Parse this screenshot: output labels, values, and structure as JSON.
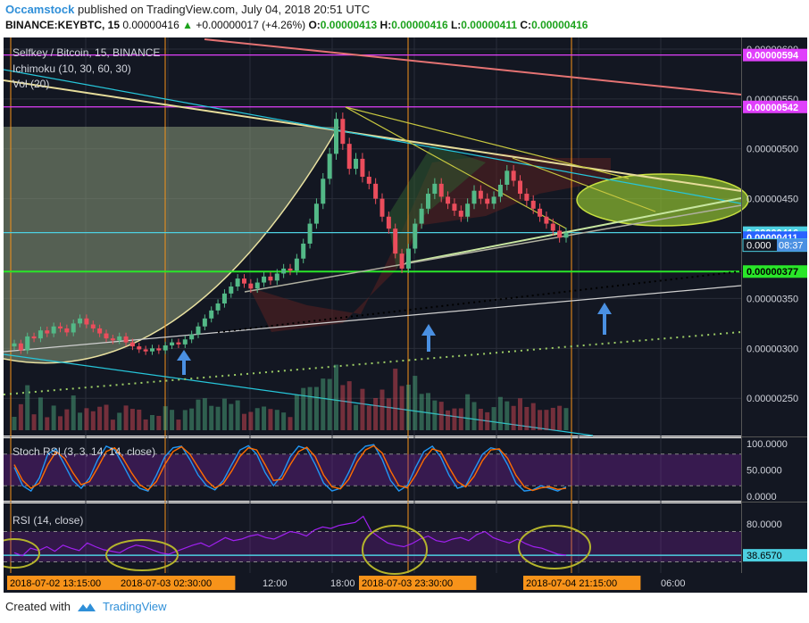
{
  "header": {
    "author": "Occamstock",
    "published_text": "published on TradingView.com, July 04, 2018 20:51 UTC",
    "symbol": "BINANCE:KEYBTC, 15",
    "price": "0.00000416",
    "change": "+0.00000017 (+4.26%)",
    "o_label": "O:",
    "o": "0.00000413",
    "h_label": "H:",
    "h": "0.00000416",
    "l_label": "L:",
    "l": "0.00000411",
    "c_label": "C:",
    "c": "0.00000416"
  },
  "legend": {
    "main": "Selfkey / Bitcoin, 15, BINANCE",
    "ichimoku": "Ichimoku (10, 30, 60, 30)",
    "vol": "Vol (20)",
    "stoch": "Stoch RSI (3, 3, 14, 14, close)",
    "rsi": "RSI (14, close)"
  },
  "footer": {
    "created": "Created with",
    "brand": "TradingView"
  },
  "colors": {
    "bg": "#131722",
    "up": "#53b987",
    "down": "#eb4d5c",
    "magenta": "#e040fb",
    "green_level": "#29e629",
    "cyan_level": "#4dd0e1",
    "orange": "#f7931a",
    "olive": "#c8c840",
    "stoch_k": "#2196f3",
    "stoch_d": "#ff6d00",
    "rsi": "#a020f0"
  },
  "chart_data": [
    {
      "type": "candlestick",
      "title": "Selfkey / Bitcoin, 15, BINANCE",
      "y_ticks": [
        "0.00000600",
        "0.00000550",
        "0.00000500",
        "0.00000450",
        "0.00000350",
        "0.00000300",
        "0.00000250"
      ],
      "ylim": [
        2.18e-06,
        6.08e-06
      ],
      "levels": [
        {
          "label": "0.00000594",
          "value": 5.94e-06,
          "color": "#e040fb"
        },
        {
          "label": "0.00000542",
          "value": 5.42e-06,
          "color": "#e040fb"
        },
        {
          "label": "0.00000416",
          "value": 4.16e-06,
          "color": "#4dd0e1"
        },
        {
          "label": "0.00000411",
          "value": 4.11e-06,
          "color": "#2962ff"
        },
        {
          "label": "0.00000377",
          "value": 3.77e-06,
          "color": "#29e629"
        }
      ],
      "countdown": {
        "price": "0.000",
        "time": "08:37"
      },
      "x_labels": [
        "2018-07-02 13:15:00",
        "2018-07-03 02:30:00",
        "12:00",
        "18:00",
        "2018-07-03 23:30:00",
        "2018-07-04 21:15:00",
        "06:00"
      ],
      "grid": true,
      "series": [
        {
          "name": "close",
          "values": [
            3.05e-06,
            2.98e-06,
            3.12e-06,
            3.1e-06,
            3.18e-06,
            3.15e-06,
            3.22e-06,
            3.2e-06,
            3.16e-06,
            3.25e-06,
            3.3e-06,
            3.24e-06,
            3.2e-06,
            3.15e-06,
            3.1e-06,
            3.08e-06,
            3.12e-06,
            3.06e-06,
            3.02e-06,
            2.99e-06,
            2.97e-06,
            3e-06,
            2.98e-06,
            3.03e-06,
            3.06e-06,
            3.04e-06,
            3.09e-06,
            3.14e-06,
            3.22e-06,
            3.3e-06,
            3.38e-06,
            3.45e-06,
            3.55e-06,
            3.62e-06,
            3.7e-06,
            3.65e-06,
            3.6e-06,
            3.66e-06,
            3.72e-06,
            3.68e-06,
            3.75e-06,
            3.8e-06,
            3.78e-06,
            3.9e-06,
            4.05e-06,
            4.25e-06,
            4.45e-06,
            4.7e-06,
            4.95e-06,
            5.3e-06,
            5.05e-06,
            4.8e-06,
            4.9e-06,
            4.72e-06,
            4.65e-06,
            4.5e-06,
            4.32e-06,
            4.2e-06,
            3.95e-06,
            3.8e-06,
            4e-06,
            4.25e-06,
            4.4e-06,
            4.55e-06,
            4.65e-06,
            4.52e-06,
            4.45e-06,
            4.38e-06,
            4.32e-06,
            4.45e-06,
            4.58e-06,
            4.5e-06,
            4.45e-06,
            4.52e-06,
            4.64e-06,
            4.78e-06,
            4.68e-06,
            4.55e-06,
            4.48e-06,
            4.4e-06,
            4.32e-06,
            4.25e-06,
            4.18e-06,
            4.11e-06,
            4.16e-06
          ]
        }
      ]
    },
    {
      "type": "line",
      "title": "Stoch RSI (3, 3, 14, 14, close)",
      "y_ticks": [
        "100.0000",
        "50.0000",
        "0.0000"
      ],
      "ylim": [
        0,
        100
      ],
      "series": [
        {
          "name": "K",
          "color": "#2196f3",
          "values": [
            55,
            20,
            10,
            35,
            80,
            90,
            60,
            30,
            15,
            35,
            70,
            95,
            88,
            60,
            30,
            15,
            10,
            40,
            75,
            92,
            95,
            70,
            40,
            20,
            12,
            30,
            60,
            88,
            96,
            80,
            45,
            20,
            40,
            75,
            95,
            90,
            60,
            25,
            10,
            15,
            45,
            80,
            95,
            98,
            70,
            30,
            10,
            20,
            55,
            85,
            95,
            75,
            40,
            15,
            20,
            50,
            80,
            92,
            88,
            60,
            25,
            10,
            12,
            20,
            15,
            10,
            18
          ]
        },
        {
          "name": "D",
          "color": "#ff6d00",
          "values": [
            60,
            30,
            15,
            25,
            60,
            85,
            72,
            45,
            22,
            28,
            55,
            85,
            92,
            72,
            45,
            22,
            12,
            28,
            60,
            85,
            94,
            80,
            55,
            30,
            16,
            24,
            48,
            76,
            92,
            88,
            60,
            30,
            32,
            60,
            85,
            93,
            75,
            40,
            18,
            14,
            32,
            65,
            88,
            96,
            82,
            48,
            20,
            16,
            40,
            70,
            90,
            85,
            55,
            28,
            18,
            38,
            68,
            88,
            90,
            72,
            40,
            18,
            11,
            16,
            18,
            13,
            15
          ]
        }
      ]
    },
    {
      "type": "line",
      "title": "RSI (14, close)",
      "y_ticks": [
        "80.0000",
        "38.6570"
      ],
      "ylim": [
        20,
        100
      ],
      "series": [
        {
          "name": "RSI",
          "color": "#a020f0",
          "values": [
            42,
            38,
            48,
            45,
            50,
            44,
            52,
            48,
            45,
            55,
            50,
            46,
            44,
            42,
            48,
            52,
            50,
            46,
            42,
            40,
            44,
            48,
            52,
            55,
            50,
            56,
            62,
            58,
            60,
            64,
            66,
            62,
            60,
            65,
            70,
            68,
            64,
            72,
            76,
            74,
            78,
            80,
            82,
            90,
            70,
            62,
            55,
            52,
            50,
            54,
            60,
            64,
            58,
            56,
            60,
            62,
            58,
            66,
            70,
            62,
            58,
            55,
            60,
            54,
            50,
            48,
            44,
            40,
            39
          ]
        }
      ]
    }
  ]
}
